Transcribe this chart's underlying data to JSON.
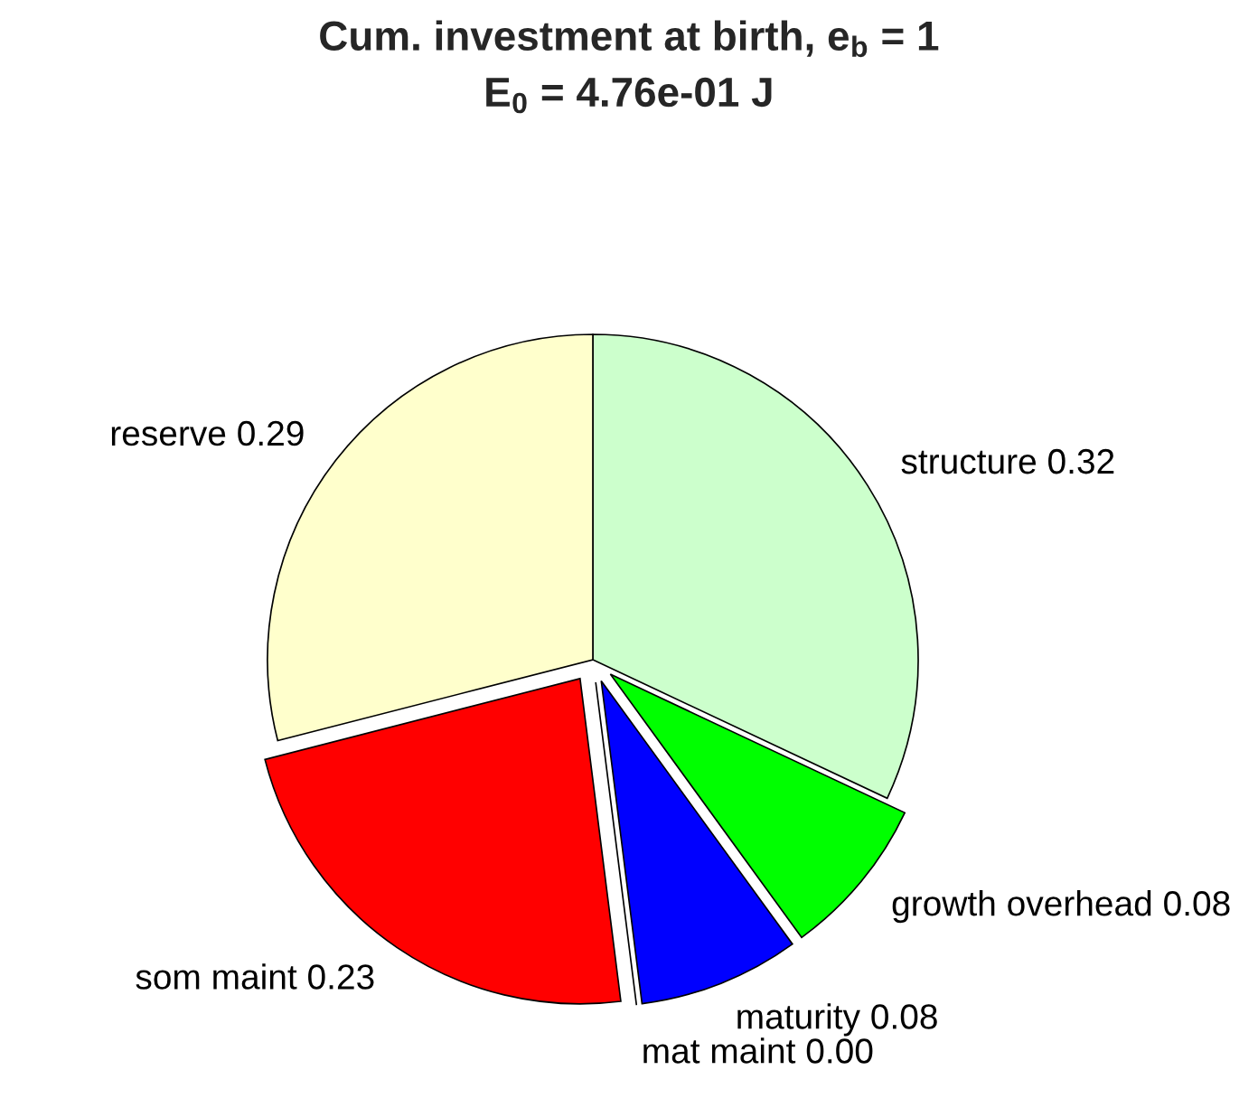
{
  "chart_data": {
    "type": "pie",
    "title": "Cum. investment at birth, e$_{b}$ = 1",
    "subtitle": "E$_{0}$ = 4.76e-01 J",
    "categories": [
      "structure",
      "growth overhead",
      "maturity",
      "mat maint",
      "som maint",
      "reserve"
    ],
    "values": [
      0.32,
      0.08,
      0.08,
      0.0,
      0.23,
      0.29
    ],
    "colors": [
      "#ccffcc",
      "#00ff00",
      "#0000ff",
      "#ffffff",
      "#ff0000",
      "#ffffcc"
    ],
    "value_labels": [
      "0.32",
      "0.08",
      "0.08",
      "0.00",
      "0.23",
      "0.29"
    ]
  }
}
